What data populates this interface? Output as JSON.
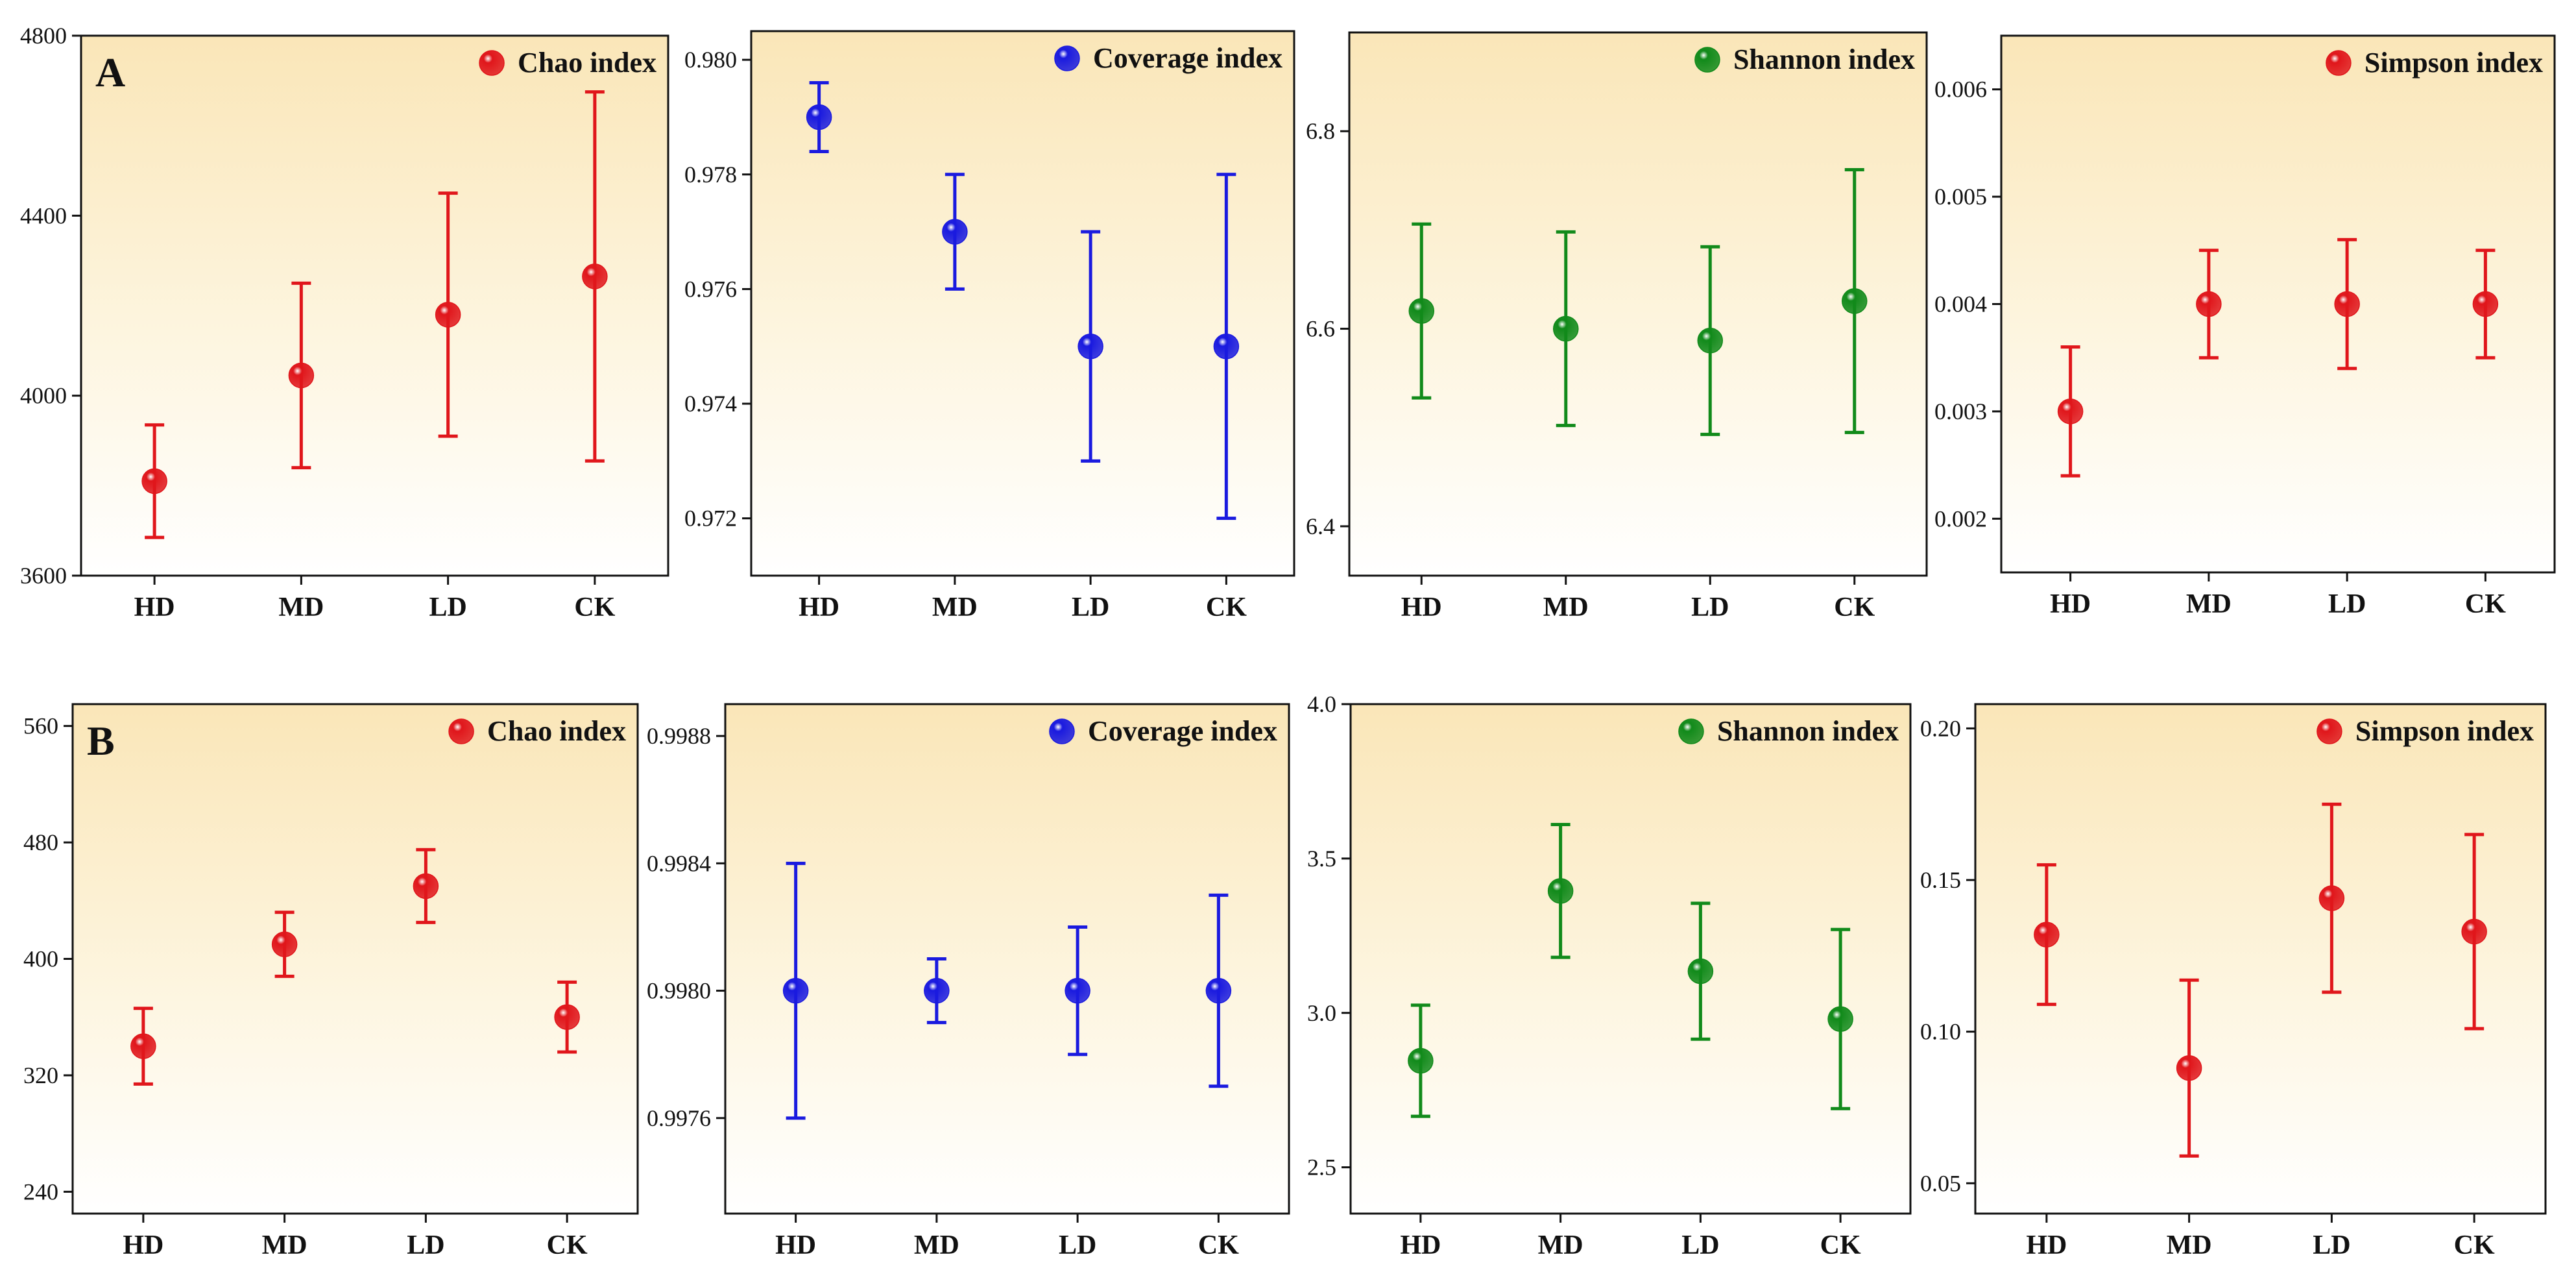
{
  "chart_data": [
    {
      "type": "scatter",
      "panel": "A",
      "legend": "Chao index",
      "color": "#e0161b",
      "categories": [
        "HD",
        "MD",
        "LD",
        "CK"
      ],
      "values": [
        3810,
        4045,
        4180,
        4265
      ],
      "errors": [
        125,
        205,
        270,
        410
      ],
      "ylim": [
        3600,
        4800
      ],
      "yticks": [
        "3600",
        "4000",
        "4400",
        "4800"
      ],
      "ytick_values": [
        3600,
        4000,
        4400,
        4800
      ]
    },
    {
      "type": "scatter",
      "panel": "",
      "legend": "Coverage index",
      "color": "#1a1adf",
      "categories": [
        "HD",
        "MD",
        "LD",
        "CK"
      ],
      "values": [
        0.979,
        0.977,
        0.975,
        0.975
      ],
      "errors": [
        0.0006,
        0.001,
        0.002,
        0.003
      ],
      "ylim": [
        0.971,
        0.9805
      ],
      "yticks": [
        "0.972",
        "0.974",
        "0.976",
        "0.978",
        "0.980"
      ],
      "ytick_values": [
        0.972,
        0.974,
        0.976,
        0.978,
        0.98
      ]
    },
    {
      "type": "scatter",
      "panel": "",
      "legend": "Shannon index",
      "color": "#118a1a",
      "categories": [
        "HD",
        "MD",
        "LD",
        "CK"
      ],
      "values": [
        6.618,
        6.6,
        6.588,
        6.628
      ],
      "errors": [
        0.088,
        0.098,
        0.095,
        0.133
      ],
      "ylim": [
        6.35,
        6.9
      ],
      "yticks": [
        "6.4",
        "6.6",
        "6.8"
      ],
      "ytick_values": [
        6.4,
        6.6,
        6.8
      ]
    },
    {
      "type": "scatter",
      "panel": "",
      "legend": "Simpson index",
      "color": "#e0161b",
      "categories": [
        "HD",
        "MD",
        "LD",
        "CK"
      ],
      "values": [
        0.003,
        0.004,
        0.004,
        0.004
      ],
      "errors": [
        0.0006,
        0.0005,
        0.0006,
        0.0005
      ],
      "ylim": [
        0.0015,
        0.0065
      ],
      "yticks": [
        "0.002",
        "0.003",
        "0.004",
        "0.005",
        "0.006"
      ],
      "ytick_values": [
        0.002,
        0.003,
        0.004,
        0.005,
        0.006
      ]
    },
    {
      "type": "scatter",
      "panel": "B",
      "legend": "Chao index",
      "color": "#e0161b",
      "categories": [
        "HD",
        "MD",
        "LD",
        "CK"
      ],
      "values": [
        340,
        410,
        450,
        360
      ],
      "errors": [
        26,
        22,
        25,
        24
      ],
      "ylim": [
        225,
        575
      ],
      "yticks": [
        "240",
        "320",
        "400",
        "480",
        "560"
      ],
      "ytick_values": [
        240,
        320,
        400,
        480,
        560
      ]
    },
    {
      "type": "scatter",
      "panel": "",
      "legend": "Coverage index",
      "color": "#1a1adf",
      "categories": [
        "HD",
        "MD",
        "LD",
        "CK"
      ],
      "values": [
        0.998,
        0.998,
        0.998,
        0.998
      ],
      "errors": [
        0.0004,
        0.0001,
        0.0002,
        0.0003
      ],
      "ylim": [
        0.9973,
        0.9989
      ],
      "yticks": [
        "0.9976",
        "0.9980",
        "0.9984",
        "0.9988"
      ],
      "ytick_values": [
        0.9976,
        0.998,
        0.9984,
        0.9988
      ]
    },
    {
      "type": "scatter",
      "panel": "",
      "legend": "Shannon index",
      "color": "#118a1a",
      "categories": [
        "HD",
        "MD",
        "LD",
        "CK"
      ],
      "values": [
        2.845,
        3.395,
        3.135,
        2.98
      ],
      "errors": [
        0.18,
        0.215,
        0.22,
        0.29
      ],
      "ylim": [
        2.35,
        4.0
      ],
      "yticks": [
        "2.5",
        "3.0",
        "3.5",
        "4.0"
      ],
      "ytick_values": [
        2.5,
        3.0,
        3.5,
        4.0
      ]
    },
    {
      "type": "scatter",
      "panel": "",
      "legend": "Simpson index",
      "color": "#e0161b",
      "categories": [
        "HD",
        "MD",
        "LD",
        "CK"
      ],
      "values": [
        0.132,
        0.088,
        0.144,
        0.133
      ],
      "errors": [
        0.023,
        0.029,
        0.031,
        0.032
      ],
      "ylim": [
        0.04,
        0.208
      ],
      "yticks": [
        "0.05",
        "0.10",
        "0.15",
        "0.20"
      ],
      "ytick_values": [
        0.05,
        0.1,
        0.15,
        0.2
      ]
    }
  ]
}
